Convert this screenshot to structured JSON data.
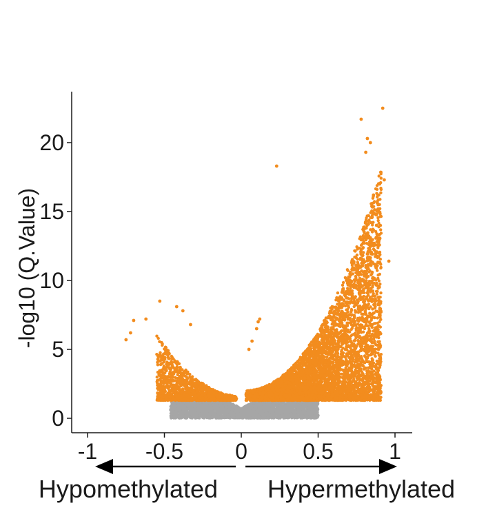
{
  "chart_data": {
    "type": "scatter",
    "title": "",
    "xlabel": "",
    "ylabel": "-log10 (Q.Value)",
    "xlim": [
      -1.0,
      1.0
    ],
    "ylim": [
      -0.3,
      23.5
    ],
    "xticks": [
      {
        "value": -1,
        "label": "-1"
      },
      {
        "value": -0.5,
        "label": "-0.5"
      },
      {
        "value": 0,
        "label": "0"
      },
      {
        "value": 0.5,
        "label": "0.5"
      },
      {
        "value": 1,
        "label": "1"
      }
    ],
    "yticks": [
      {
        "value": 0,
        "label": "0"
      },
      {
        "value": 5,
        "label": "5"
      },
      {
        "value": 10,
        "label": "10"
      },
      {
        "value": 15,
        "label": "15"
      },
      {
        "value": 20,
        "label": "20"
      }
    ],
    "grid": false,
    "legend": "none",
    "significance_threshold": 1.3,
    "colors": {
      "significant": "#F28C1E",
      "not_significant": "#A6A6A6",
      "axis": "#1a1a1a"
    },
    "point_groups": [
      {
        "name": "",
        "color": "#A6A6A6",
        "envelope": "baseline",
        "description_x_range": [
          -0.45,
          0.5
        ]
      },
      {
        "name": "",
        "color": "#F28C1E",
        "envelope": "hypo",
        "x_range": [
          -0.55,
          -0.03
        ],
        "y_range": [
          1.3,
          6
        ]
      },
      {
        "name": "",
        "color": "#F28C1E",
        "envelope": "hyper",
        "x_range": [
          0.03,
          0.92
        ],
        "y_range": [
          1.3,
          20
        ]
      }
    ],
    "outliers": [
      [
        0.92,
        22.5
      ],
      [
        0.78,
        21.7
      ],
      [
        0.23,
        18.3
      ],
      [
        0.82,
        20.3
      ],
      [
        0.81,
        19.3
      ],
      [
        0.84,
        20.0
      ],
      [
        0.96,
        11.4
      ],
      [
        -0.53,
        8.5
      ],
      [
        -0.38,
        7.8
      ],
      [
        -0.7,
        7.1
      ],
      [
        -0.62,
        7.2
      ],
      [
        -0.75,
        5.7
      ],
      [
        -0.72,
        6.2
      ],
      [
        -0.42,
        8.1
      ],
      [
        -0.33,
        6.8
      ],
      [
        0.11,
        7.0
      ],
      [
        0.1,
        6.5
      ],
      [
        0.12,
        7.2
      ],
      [
        0.07,
        5.6
      ],
      [
        0.05,
        5.0
      ],
      [
        0.93,
        17.3
      ],
      [
        0.9,
        17.0
      ],
      [
        0.89,
        15.5
      ],
      [
        0.86,
        16.2
      ],
      [
        0.88,
        14.0
      ]
    ]
  },
  "annotations": {
    "hypo_label": "Hypomethylated",
    "hyper_label": "Hypermethylated"
  }
}
